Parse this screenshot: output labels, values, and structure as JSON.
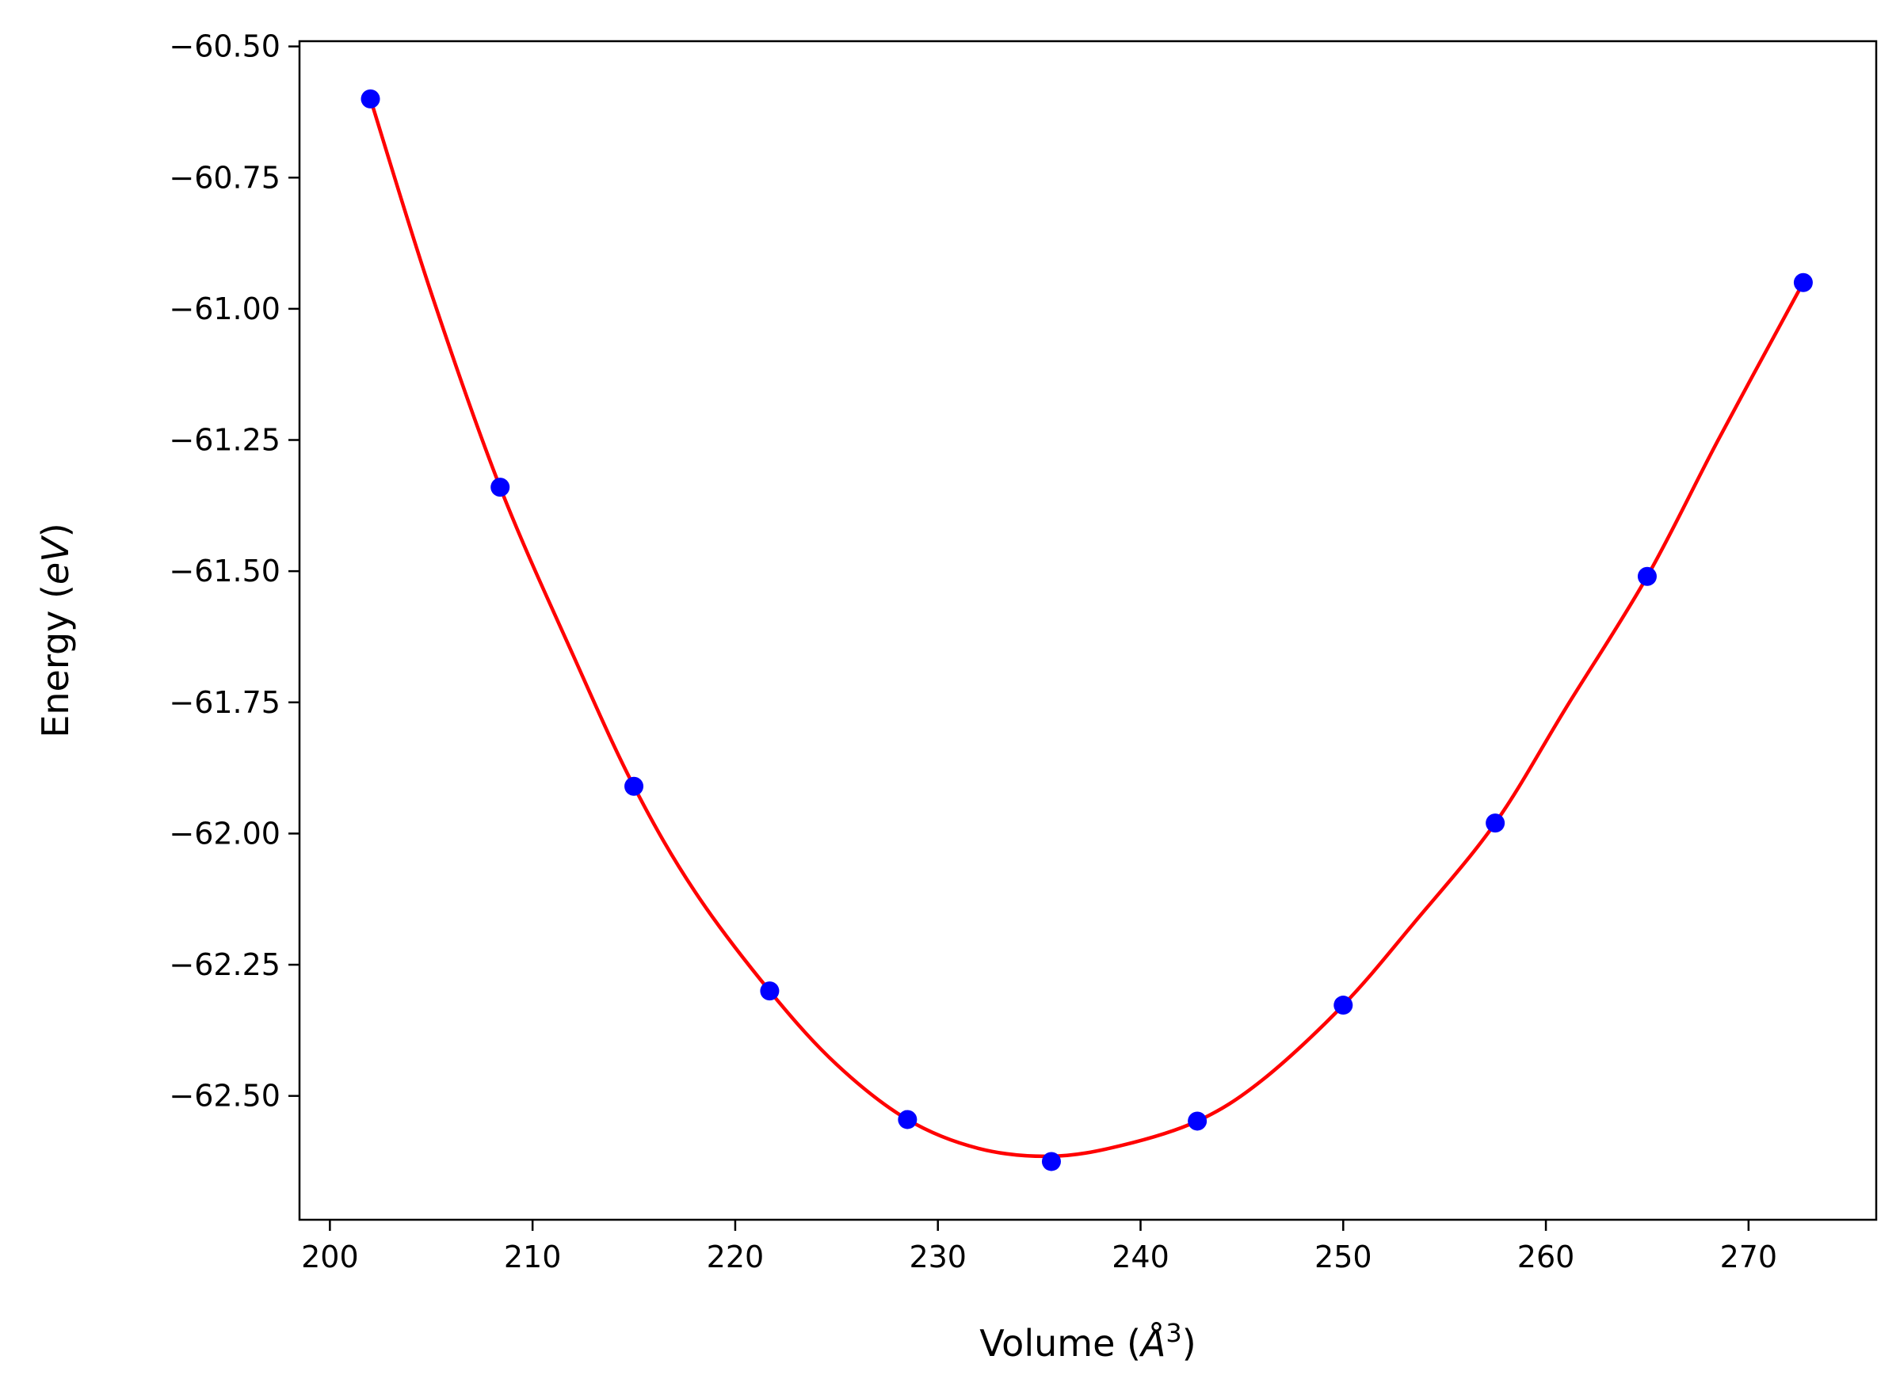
{
  "chart_data": {
    "type": "scatter",
    "title": "",
    "xlabel": "Volume (Å³)",
    "xlabel_parts": {
      "pre": "Volume (",
      "symbol": "Å",
      "sup": "3",
      "post": ")"
    },
    "ylabel": "Energy (eV)",
    "ylabel_parts": {
      "pre": "Energy (",
      "italic": "eV",
      "post": ")"
    },
    "xlim": [
      198.5,
      276.3
    ],
    "ylim": [
      -62.736,
      -60.49
    ],
    "grid": false,
    "xticks": [
      200,
      210,
      220,
      230,
      240,
      250,
      260,
      270
    ],
    "xtick_labels": [
      "200",
      "210",
      "220",
      "230",
      "240",
      "250",
      "260",
      "270"
    ],
    "yticks": [
      -60.5,
      -60.75,
      -61.0,
      -61.25,
      -61.5,
      -61.75,
      -62.0,
      -62.25,
      -62.5
    ],
    "ytick_labels": [
      "−60.50",
      "−60.75",
      "−61.00",
      "−61.25",
      "−61.50",
      "−61.75",
      "−62.00",
      "−62.25",
      "−62.50"
    ],
    "series": [
      {
        "kind": "points",
        "color": "#0000ff",
        "x": [
          202.0,
          208.4,
          215.0,
          221.7,
          228.5,
          235.6,
          242.8,
          250.0,
          257.5,
          265.0,
          272.7
        ],
        "y": [
          -60.6,
          -61.34,
          -61.91,
          -62.3,
          -62.545,
          -62.625,
          -62.548,
          -62.327,
          -61.98,
          -61.51,
          -60.95
        ]
      },
      {
        "kind": "fit_curve",
        "color": "#ff0000",
        "x": [
          202.0,
          205.0,
          208.4,
          212.0,
          215.0,
          218.0,
          221.7,
          225.0,
          228.5,
          232.0,
          235.6,
          239.0,
          242.8,
          246.0,
          250.0,
          253.5,
          257.5,
          261.0,
          265.0,
          268.5,
          272.7
        ],
        "y": [
          -60.6,
          -60.97,
          -61.34,
          -61.66,
          -61.91,
          -62.11,
          -62.3,
          -62.44,
          -62.545,
          -62.6,
          -62.615,
          -62.595,
          -62.548,
          -62.47,
          -62.327,
          -62.17,
          -61.98,
          -61.76,
          -61.51,
          -61.25,
          -60.95
        ]
      }
    ]
  }
}
